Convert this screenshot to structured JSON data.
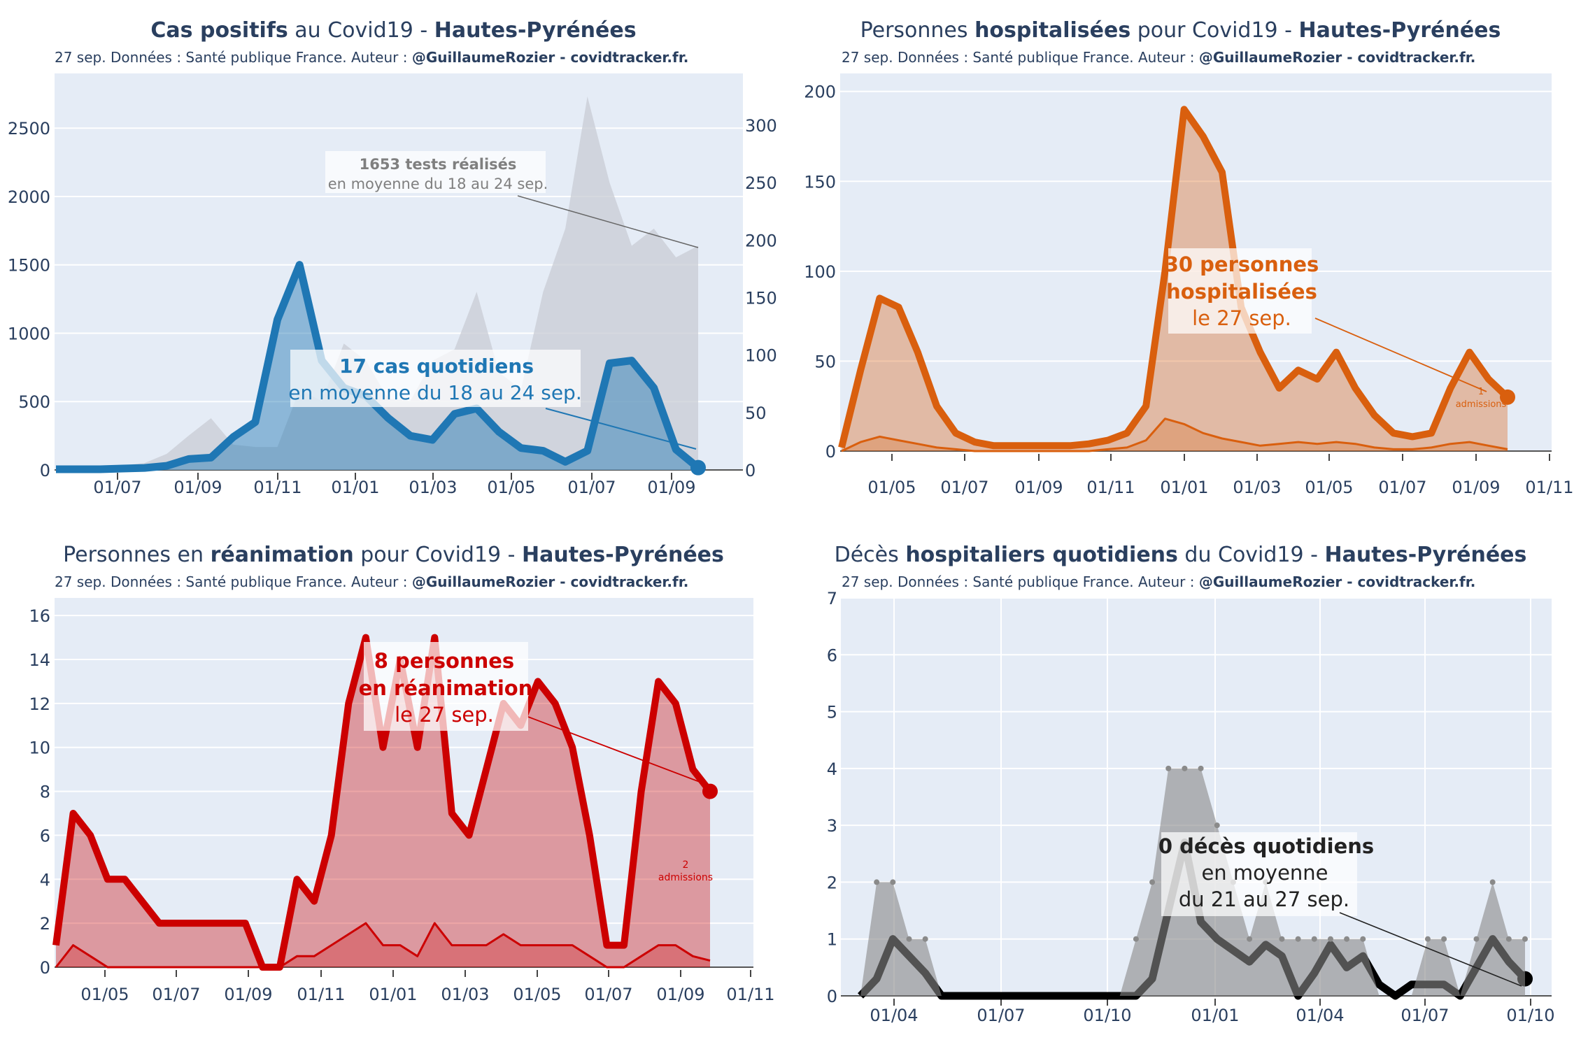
{
  "chart_data": [
    {
      "type": "area",
      "id": "cases",
      "title": {
        "bold1": "Cas positifs",
        "plain1": " au Covid19 - ",
        "bold2": "Hautes-Pyrénées",
        "plain2": ""
      },
      "subtitle": {
        "plain": "27 sep. Données : Santé publique France. Auteur : ",
        "bold": "@GuillaumeRozier - covidtracker.fr."
      },
      "x_ticks": [
        "01/07",
        "01/09",
        "01/11",
        "01/01",
        "01/03",
        "01/05",
        "01/07",
        "01/09"
      ],
      "y_ticks": [
        "0",
        "500",
        "1000",
        "1500",
        "2000",
        "2500"
      ],
      "y2_ticks": [
        "0",
        "50",
        "100",
        "150",
        "200",
        "250",
        "300"
      ],
      "ylim": [
        0,
        2900
      ],
      "y2lim": [
        0,
        345
      ],
      "series": [
        {
          "name": "tests (moyenne)",
          "axis": "right",
          "color": "#c8ccd4",
          "values": [
            2,
            2,
            3,
            4,
            6,
            14,
            30,
            45,
            22,
            20,
            20,
            70,
            60,
            110,
            95,
            62,
            60,
            95,
            105,
            155,
            85,
            70,
            155,
            210,
            325,
            250,
            195,
            210,
            185,
            195
          ]
        },
        {
          "name": "cas quotidiens (moyenne)",
          "axis": "left",
          "color": "#1f77b4",
          "values": [
            5,
            5,
            5,
            10,
            15,
            30,
            80,
            90,
            240,
            350,
            1100,
            1500,
            800,
            600,
            540,
            380,
            250,
            220,
            410,
            450,
            280,
            160,
            140,
            60,
            140,
            780,
            800,
            600,
            150,
            17
          ]
        }
      ],
      "annotations": [
        {
          "bold": "1653 tests réalisés",
          "text": "en moyenne du 18 au 24 sep.",
          "color": "#7f7f7f"
        },
        {
          "bold": "17 cas quotidiens",
          "text": "en moyenne du 18 au 24 sep.",
          "color": "#1f77b4"
        }
      ]
    },
    {
      "type": "area",
      "id": "hosp",
      "title": {
        "plain1": "Personnes ",
        "bold1": "hospitalisées",
        "plain2": " pour Covid19 - ",
        "bold2": "Hautes-Pyrénées"
      },
      "subtitle": {
        "plain": "27 sep. Données : Santé publique France. Auteur : ",
        "bold": "@GuillaumeRozier - covidtracker.fr."
      },
      "x_ticks": [
        "01/05",
        "01/07",
        "01/09",
        "01/11",
        "01/01",
        "01/03",
        "01/05",
        "01/07",
        "01/09",
        "01/11"
      ],
      "y_ticks": [
        "0",
        "50",
        "100",
        "150",
        "200"
      ],
      "ylim": [
        0,
        210
      ],
      "series": [
        {
          "name": "hospitalisations",
          "color": "#d95f0e",
          "values": [
            2,
            45,
            85,
            80,
            55,
            25,
            10,
            5,
            3,
            3,
            3,
            3,
            3,
            4,
            6,
            10,
            25,
            100,
            190,
            175,
            155,
            80,
            55,
            35,
            45,
            40,
            55,
            35,
            20,
            10,
            8,
            10,
            35,
            55,
            40,
            30
          ]
        },
        {
          "name": "admissions",
          "color": "#d95f0e",
          "values": [
            0,
            5,
            8,
            6,
            4,
            2,
            1,
            0,
            0,
            0,
            0,
            0,
            0,
            0,
            1,
            2,
            6,
            18,
            15,
            10,
            7,
            5,
            3,
            4,
            5,
            4,
            5,
            4,
            2,
            1,
            1,
            2,
            4,
            5,
            3,
            1
          ]
        }
      ],
      "annotations": [
        {
          "bold": "30 personnes",
          "bold2": "hospitalisées",
          "text": "le 27 sep.",
          "color": "#d95f0e"
        },
        {
          "small1": "1",
          "small2": "admissions",
          "color": "#d95f0e"
        }
      ]
    },
    {
      "type": "area",
      "id": "rea",
      "title": {
        "plain1": "Personnes en ",
        "bold1": "réanimation",
        "plain2": " pour Covid19 - ",
        "bold2": "Hautes-Pyrénées"
      },
      "subtitle": {
        "plain": "27 sep. Données : Santé publique France. Auteur : ",
        "bold": "@GuillaumeRozier - covidtracker.fr."
      },
      "x_ticks": [
        "01/05",
        "01/07",
        "01/09",
        "01/11",
        "01/01",
        "01/03",
        "01/05",
        "01/07",
        "01/09",
        "01/11"
      ],
      "y_ticks": [
        "0",
        "2",
        "4",
        "6",
        "8",
        "10",
        "12",
        "14",
        "16"
      ],
      "ylim": [
        0,
        16.8
      ],
      "series": [
        {
          "name": "réanimation",
          "color": "#cc0000",
          "values": [
            1,
            7,
            6,
            4,
            4,
            3,
            2,
            2,
            2,
            2,
            2,
            2,
            0,
            0,
            4,
            3,
            6,
            12,
            15,
            10,
            14,
            10,
            15,
            7,
            6,
            9,
            12,
            11,
            13,
            12,
            10,
            6,
            1,
            1,
            8,
            13,
            12,
            9,
            8
          ]
        },
        {
          "name": "admissions",
          "color": "#cc0000",
          "values": [
            0,
            1,
            0.5,
            0,
            0,
            0,
            0,
            0,
            0,
            0,
            0,
            0,
            0,
            0,
            0.5,
            0.5,
            1,
            1.5,
            2,
            1,
            1,
            0.5,
            2,
            1,
            1,
            1,
            1.5,
            1,
            1,
            1,
            1,
            0.5,
            0,
            0,
            0.5,
            1,
            1,
            0.5,
            0.3
          ]
        }
      ],
      "annotations": [
        {
          "bold": "8 personnes",
          "bold2": "en réanimation",
          "text": "le 27 sep.",
          "color": "#cc0000"
        },
        {
          "small1": "2",
          "small2": "admissions",
          "color": "#cc0000"
        }
      ]
    },
    {
      "type": "area",
      "id": "deces",
      "title": {
        "plain1": "Décès ",
        "bold1": "hospitaliers quotidiens",
        "plain2": " du Covid19 - ",
        "bold2": "Hautes-Pyrénées"
      },
      "subtitle": {
        "plain": "27 sep. Données : Santé publique France. Auteur : ",
        "bold": "@GuillaumeRozier - covidtracker.fr."
      },
      "x_ticks": [
        "01/04",
        "01/07",
        "01/10",
        "01/01",
        "01/04",
        "01/07",
        "01/10"
      ],
      "y_ticks": [
        "0",
        "1",
        "2",
        "3",
        "4",
        "5",
        "6",
        "7"
      ],
      "ylim": [
        0,
        7
      ],
      "series": [
        {
          "name": "décès (moyenne)",
          "color": "#000000",
          "values": [
            0,
            0.3,
            1,
            0.7,
            0.4,
            0,
            0,
            0,
            0,
            0,
            0,
            0,
            0,
            0,
            0,
            0,
            0,
            0,
            0.3,
            1.5,
            2.7,
            1.3,
            1,
            0.8,
            0.6,
            0.9,
            0.7,
            0,
            0.4,
            0.9,
            0.5,
            0.7,
            0.2,
            0,
            0.2,
            0.2,
            0.2,
            0,
            0.5,
            1,
            0.6,
            0.3
          ]
        },
        {
          "name": "décès quotidiens",
          "color": "#888888",
          "values": [
            0,
            2,
            2,
            1,
            1,
            0,
            0,
            0,
            0,
            0,
            0,
            0,
            0,
            0,
            0,
            0,
            0,
            1,
            2,
            4,
            4,
            4,
            3,
            2,
            1,
            2,
            1,
            1,
            1,
            1,
            1,
            1,
            0,
            0,
            0,
            1,
            1,
            0,
            1,
            2,
            1,
            1
          ]
        }
      ],
      "annotations": [
        {
          "bold": "0 décès quotidiens",
          "text": "en moyenne",
          "text2": "du 21 au 27 sep.",
          "color": "#222222"
        }
      ]
    }
  ]
}
